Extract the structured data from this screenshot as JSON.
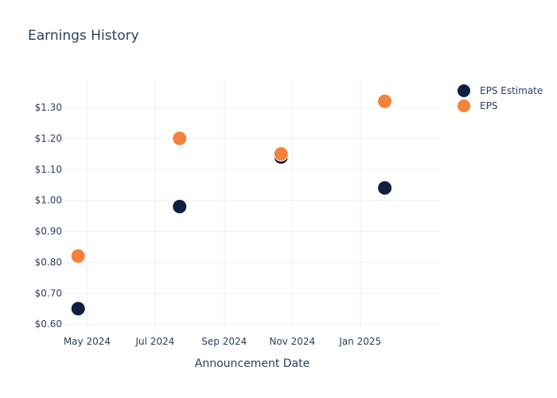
{
  "chart_data": {
    "type": "scatter",
    "title": "Earnings History",
    "xlabel": "Announcement Date",
    "ylabel": "",
    "x_ticks": [
      {
        "date": "2024-05-01",
        "label": "May 2024"
      },
      {
        "date": "2024-07-01",
        "label": "Jul 2024"
      },
      {
        "date": "2024-09-01",
        "label": "Sep 2024"
      },
      {
        "date": "2024-11-01",
        "label": "Nov 2024"
      },
      {
        "date": "2025-01-01",
        "label": "Jan 2025"
      }
    ],
    "xlim": [
      "2024-04-10",
      "2025-03-15"
    ],
    "y_ticks": [
      {
        "value": 0.6,
        "label": "$0.60"
      },
      {
        "value": 0.7,
        "label": "$0.70"
      },
      {
        "value": 0.8,
        "label": "$0.80"
      },
      {
        "value": 0.9,
        "label": "$0.90"
      },
      {
        "value": 1.0,
        "label": "$1.00"
      },
      {
        "value": 1.1,
        "label": "$1.10"
      },
      {
        "value": 1.2,
        "label": "$1.20"
      },
      {
        "value": 1.3,
        "label": "$1.30"
      }
    ],
    "ylim": [
      0.58,
      1.39
    ],
    "grid": true,
    "legend_position": "top-right",
    "series": [
      {
        "name": "EPS Estimate",
        "color": "#0e1f40",
        "points": [
          {
            "x": "2024-04-23",
            "y": 0.65
          },
          {
            "x": "2024-07-23",
            "y": 0.98
          },
          {
            "x": "2024-10-22",
            "y": 1.14
          },
          {
            "x": "2025-01-23",
            "y": 1.04
          }
        ]
      },
      {
        "name": "EPS",
        "color": "#f5813a",
        "points": [
          {
            "x": "2024-04-23",
            "y": 0.82
          },
          {
            "x": "2024-07-23",
            "y": 1.2
          },
          {
            "x": "2024-10-22",
            "y": 1.15
          },
          {
            "x": "2025-01-23",
            "y": 1.32
          }
        ]
      }
    ]
  }
}
